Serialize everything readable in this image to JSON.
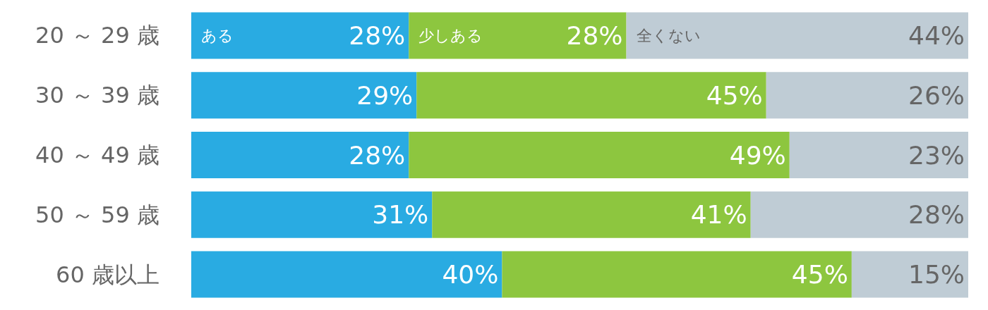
{
  "chart_data": {
    "type": "bar",
    "orientation": "horizontal",
    "stacked": true,
    "legend": false,
    "tick_labels": "y",
    "categories": [
      "20 ～ 29 歳",
      "30 ～ 39 歳",
      "40 ～ 49 歳",
      "50 ～ 59 歳",
      "60 歳以上"
    ],
    "series": [
      {
        "name": "ある",
        "color": "#29abe2",
        "values": [
          28,
          29,
          28,
          31,
          40
        ],
        "value_labels": [
          "28%",
          "29%",
          "28%",
          "31%",
          "40%"
        ]
      },
      {
        "name": "少しある",
        "color": "#8dc63f",
        "values": [
          28,
          45,
          49,
          41,
          45
        ],
        "value_labels": [
          "28%",
          "45%",
          "49%",
          "41%",
          "45%"
        ]
      },
      {
        "name": "全くない",
        "color": "#bfccd5",
        "values": [
          44,
          26,
          23,
          28,
          15
        ],
        "value_labels": [
          "44%",
          "26%",
          "23%",
          "28%",
          "15%"
        ]
      }
    ]
  }
}
